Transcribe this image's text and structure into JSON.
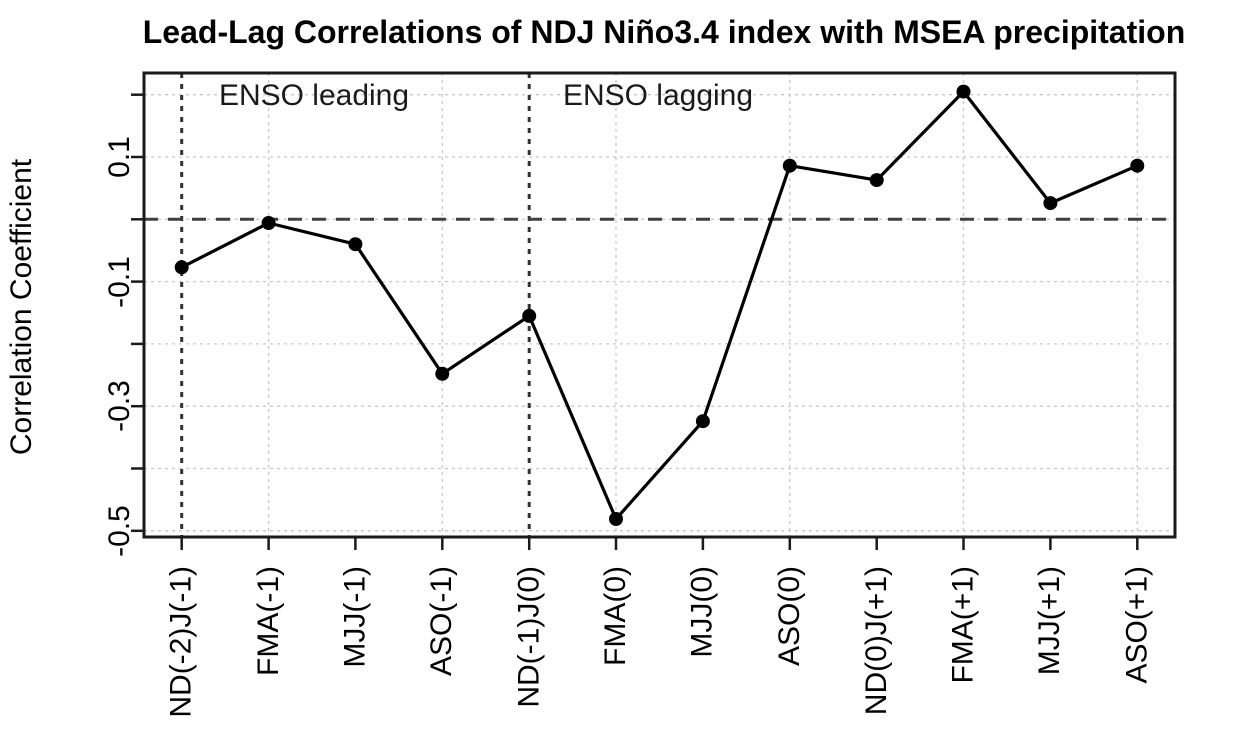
{
  "chart_data": {
    "type": "line",
    "title": "Lead-Lag Correlations of NDJ Niño3.4 index with MSEA precipitation",
    "xlabel": "",
    "ylabel": "Correlation Coefficient",
    "categories": [
      "ND(-2)J(-1)",
      "FMA(-1)",
      "MJJ(-1)",
      "ASO(-1)",
      "ND(-1)J(0)",
      "FMA(0)",
      "MJJ(0)",
      "ASO(0)",
      "ND(0)J(+1)",
      "FMA(+1)",
      "MJJ(+1)",
      "ASO(+1)"
    ],
    "values": [
      -0.077,
      -0.006,
      -0.04,
      -0.248,
      -0.155,
      -0.481,
      -0.324,
      0.086,
      0.063,
      0.205,
      0.026,
      0.086
    ],
    "ylim": [
      -0.51,
      0.235
    ],
    "yticks": [
      0.2,
      0.1,
      0.0,
      -0.1,
      -0.2,
      -0.3,
      -0.4,
      -0.5
    ],
    "ytick_labels": [
      "",
      "0.1",
      "",
      "-0.1",
      "",
      "-0.3",
      "",
      "-0.5"
    ],
    "grid": "light dotted gridlines: horizontal at every 0.1, vertical at even categories",
    "vertical_gridlines_at_categories": [
      "FMA(-1)",
      "ASO(-1)",
      "FMA(0)",
      "ASO(0)",
      "FMA(+1)",
      "ASO(+1)"
    ],
    "reference_lines_at_categories": [
      "ND(-2)J(-1)",
      "ND(-1)J(0)"
    ],
    "zero_line": {
      "y": 0,
      "style": "long-dashed"
    },
    "annotations": [
      {
        "text": "ENSO leading"
      },
      {
        "text": "ENSO lagging"
      }
    ],
    "legend": "none",
    "point_style": "filled-circle"
  },
  "colors": {
    "background": "#ffffff",
    "series": "#000000",
    "grid": "#c8c8c8",
    "zero_line": "#404040",
    "reference_line": "#333333",
    "axis": "#1a1a1a",
    "text": "#000000"
  }
}
